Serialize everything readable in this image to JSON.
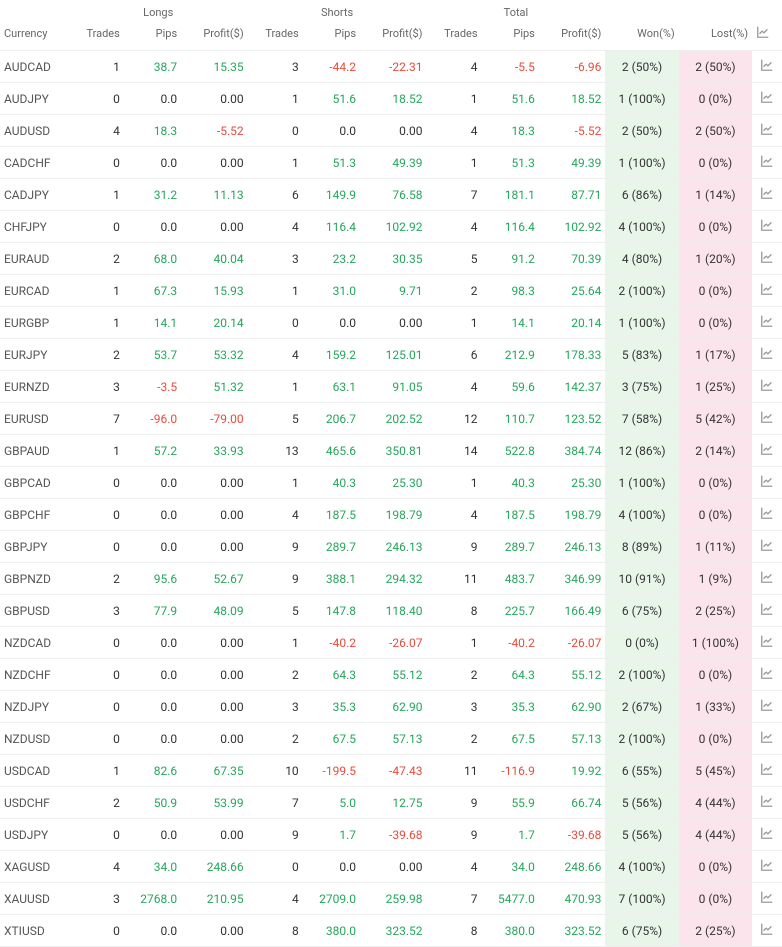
{
  "groups": {
    "longs": "Longs",
    "shorts": "Shorts",
    "total": "Total"
  },
  "headers": {
    "currency": "Currency",
    "trades": "Trades",
    "pips": "Pips",
    "profit": "Profit($)",
    "won": "Won(%)",
    "lost": "Lost(%)"
  },
  "colors": {
    "pos": "#26a65b",
    "neg": "#e74c3c",
    "won_bg": "#e8f5e9",
    "lost_bg": "#fce4ec"
  },
  "rows": [
    {
      "currency": "AUDCAD",
      "l_trades": 1,
      "l_pips": "38.7",
      "l_pips_c": "pos",
      "l_profit": "15.35",
      "l_profit_c": "pos",
      "s_trades": 3,
      "s_pips": "-44.2",
      "s_pips_c": "neg",
      "s_profit": "-22.31",
      "s_profit_c": "neg",
      "t_trades": 4,
      "t_pips": "-5.5",
      "t_pips_c": "neg",
      "t_profit": "-6.96",
      "t_profit_c": "neg",
      "won": "2 (50%)",
      "lost": "2 (50%)"
    },
    {
      "currency": "AUDJPY",
      "l_trades": 0,
      "l_pips": "0.0",
      "l_pips_c": "neutral",
      "l_profit": "0.00",
      "l_profit_c": "neutral",
      "s_trades": 1,
      "s_pips": "51.6",
      "s_pips_c": "pos",
      "s_profit": "18.52",
      "s_profit_c": "pos",
      "t_trades": 1,
      "t_pips": "51.6",
      "t_pips_c": "pos",
      "t_profit": "18.52",
      "t_profit_c": "pos",
      "won": "1 (100%)",
      "lost": "0 (0%)"
    },
    {
      "currency": "AUDUSD",
      "l_trades": 4,
      "l_pips": "18.3",
      "l_pips_c": "pos",
      "l_profit": "-5.52",
      "l_profit_c": "neg",
      "s_trades": 0,
      "s_pips": "0.0",
      "s_pips_c": "neutral",
      "s_profit": "0.00",
      "s_profit_c": "neutral",
      "t_trades": 4,
      "t_pips": "18.3",
      "t_pips_c": "pos",
      "t_profit": "-5.52",
      "t_profit_c": "neg",
      "won": "2 (50%)",
      "lost": "2 (50%)"
    },
    {
      "currency": "CADCHF",
      "l_trades": 0,
      "l_pips": "0.0",
      "l_pips_c": "neutral",
      "l_profit": "0.00",
      "l_profit_c": "neutral",
      "s_trades": 1,
      "s_pips": "51.3",
      "s_pips_c": "pos",
      "s_profit": "49.39",
      "s_profit_c": "pos",
      "t_trades": 1,
      "t_pips": "51.3",
      "t_pips_c": "pos",
      "t_profit": "49.39",
      "t_profit_c": "pos",
      "won": "1 (100%)",
      "lost": "0 (0%)"
    },
    {
      "currency": "CADJPY",
      "l_trades": 1,
      "l_pips": "31.2",
      "l_pips_c": "pos",
      "l_profit": "11.13",
      "l_profit_c": "pos",
      "s_trades": 6,
      "s_pips": "149.9",
      "s_pips_c": "pos",
      "s_profit": "76.58",
      "s_profit_c": "pos",
      "t_trades": 7,
      "t_pips": "181.1",
      "t_pips_c": "pos",
      "t_profit": "87.71",
      "t_profit_c": "pos",
      "won": "6 (86%)",
      "lost": "1 (14%)"
    },
    {
      "currency": "CHFJPY",
      "l_trades": 0,
      "l_pips": "0.0",
      "l_pips_c": "neutral",
      "l_profit": "0.00",
      "l_profit_c": "neutral",
      "s_trades": 4,
      "s_pips": "116.4",
      "s_pips_c": "pos",
      "s_profit": "102.92",
      "s_profit_c": "pos",
      "t_trades": 4,
      "t_pips": "116.4",
      "t_pips_c": "pos",
      "t_profit": "102.92",
      "t_profit_c": "pos",
      "won": "4 (100%)",
      "lost": "0 (0%)"
    },
    {
      "currency": "EURAUD",
      "l_trades": 2,
      "l_pips": "68.0",
      "l_pips_c": "pos",
      "l_profit": "40.04",
      "l_profit_c": "pos",
      "s_trades": 3,
      "s_pips": "23.2",
      "s_pips_c": "pos",
      "s_profit": "30.35",
      "s_profit_c": "pos",
      "t_trades": 5,
      "t_pips": "91.2",
      "t_pips_c": "pos",
      "t_profit": "70.39",
      "t_profit_c": "pos",
      "won": "4 (80%)",
      "lost": "1 (20%)"
    },
    {
      "currency": "EURCAD",
      "l_trades": 1,
      "l_pips": "67.3",
      "l_pips_c": "pos",
      "l_profit": "15.93",
      "l_profit_c": "pos",
      "s_trades": 1,
      "s_pips": "31.0",
      "s_pips_c": "pos",
      "s_profit": "9.71",
      "s_profit_c": "pos",
      "t_trades": 2,
      "t_pips": "98.3",
      "t_pips_c": "pos",
      "t_profit": "25.64",
      "t_profit_c": "pos",
      "won": "2 (100%)",
      "lost": "0 (0%)"
    },
    {
      "currency": "EURGBP",
      "l_trades": 1,
      "l_pips": "14.1",
      "l_pips_c": "pos",
      "l_profit": "20.14",
      "l_profit_c": "pos",
      "s_trades": 0,
      "s_pips": "0.0",
      "s_pips_c": "neutral",
      "s_profit": "0.00",
      "s_profit_c": "neutral",
      "t_trades": 1,
      "t_pips": "14.1",
      "t_pips_c": "pos",
      "t_profit": "20.14",
      "t_profit_c": "pos",
      "won": "1 (100%)",
      "lost": "0 (0%)"
    },
    {
      "currency": "EURJPY",
      "l_trades": 2,
      "l_pips": "53.7",
      "l_pips_c": "pos",
      "l_profit": "53.32",
      "l_profit_c": "pos",
      "s_trades": 4,
      "s_pips": "159.2",
      "s_pips_c": "pos",
      "s_profit": "125.01",
      "s_profit_c": "pos",
      "t_trades": 6,
      "t_pips": "212.9",
      "t_pips_c": "pos",
      "t_profit": "178.33",
      "t_profit_c": "pos",
      "won": "5 (83%)",
      "lost": "1 (17%)"
    },
    {
      "currency": "EURNZD",
      "l_trades": 3,
      "l_pips": "-3.5",
      "l_pips_c": "neg",
      "l_profit": "51.32",
      "l_profit_c": "pos",
      "s_trades": 1,
      "s_pips": "63.1",
      "s_pips_c": "pos",
      "s_profit": "91.05",
      "s_profit_c": "pos",
      "t_trades": 4,
      "t_pips": "59.6",
      "t_pips_c": "pos",
      "t_profit": "142.37",
      "t_profit_c": "pos",
      "won": "3 (75%)",
      "lost": "1 (25%)"
    },
    {
      "currency": "EURUSD",
      "l_trades": 7,
      "l_pips": "-96.0",
      "l_pips_c": "neg",
      "l_profit": "-79.00",
      "l_profit_c": "neg",
      "s_trades": 5,
      "s_pips": "206.7",
      "s_pips_c": "pos",
      "s_profit": "202.52",
      "s_profit_c": "pos",
      "t_trades": 12,
      "t_pips": "110.7",
      "t_pips_c": "pos",
      "t_profit": "123.52",
      "t_profit_c": "pos",
      "won": "7 (58%)",
      "lost": "5 (42%)"
    },
    {
      "currency": "GBPAUD",
      "l_trades": 1,
      "l_pips": "57.2",
      "l_pips_c": "pos",
      "l_profit": "33.93",
      "l_profit_c": "pos",
      "s_trades": 13,
      "s_pips": "465.6",
      "s_pips_c": "pos",
      "s_profit": "350.81",
      "s_profit_c": "pos",
      "t_trades": 14,
      "t_pips": "522.8",
      "t_pips_c": "pos",
      "t_profit": "384.74",
      "t_profit_c": "pos",
      "won": "12 (86%)",
      "lost": "2 (14%)"
    },
    {
      "currency": "GBPCAD",
      "l_trades": 0,
      "l_pips": "0.0",
      "l_pips_c": "neutral",
      "l_profit": "0.00",
      "l_profit_c": "neutral",
      "s_trades": 1,
      "s_pips": "40.3",
      "s_pips_c": "pos",
      "s_profit": "25.30",
      "s_profit_c": "pos",
      "t_trades": 1,
      "t_pips": "40.3",
      "t_pips_c": "pos",
      "t_profit": "25.30",
      "t_profit_c": "pos",
      "won": "1 (100%)",
      "lost": "0 (0%)"
    },
    {
      "currency": "GBPCHF",
      "l_trades": 0,
      "l_pips": "0.0",
      "l_pips_c": "neutral",
      "l_profit": "0.00",
      "l_profit_c": "neutral",
      "s_trades": 4,
      "s_pips": "187.5",
      "s_pips_c": "pos",
      "s_profit": "198.79",
      "s_profit_c": "pos",
      "t_trades": 4,
      "t_pips": "187.5",
      "t_pips_c": "pos",
      "t_profit": "198.79",
      "t_profit_c": "pos",
      "won": "4 (100%)",
      "lost": "0 (0%)"
    },
    {
      "currency": "GBPJPY",
      "l_trades": 0,
      "l_pips": "0.0",
      "l_pips_c": "neutral",
      "l_profit": "0.00",
      "l_profit_c": "neutral",
      "s_trades": 9,
      "s_pips": "289.7",
      "s_pips_c": "pos",
      "s_profit": "246.13",
      "s_profit_c": "pos",
      "t_trades": 9,
      "t_pips": "289.7",
      "t_pips_c": "pos",
      "t_profit": "246.13",
      "t_profit_c": "pos",
      "won": "8 (89%)",
      "lost": "1 (11%)"
    },
    {
      "currency": "GBPNZD",
      "l_trades": 2,
      "l_pips": "95.6",
      "l_pips_c": "pos",
      "l_profit": "52.67",
      "l_profit_c": "pos",
      "s_trades": 9,
      "s_pips": "388.1",
      "s_pips_c": "pos",
      "s_profit": "294.32",
      "s_profit_c": "pos",
      "t_trades": 11,
      "t_pips": "483.7",
      "t_pips_c": "pos",
      "t_profit": "346.99",
      "t_profit_c": "pos",
      "won": "10 (91%)",
      "lost": "1 (9%)"
    },
    {
      "currency": "GBPUSD",
      "l_trades": 3,
      "l_pips": "77.9",
      "l_pips_c": "pos",
      "l_profit": "48.09",
      "l_profit_c": "pos",
      "s_trades": 5,
      "s_pips": "147.8",
      "s_pips_c": "pos",
      "s_profit": "118.40",
      "s_profit_c": "pos",
      "t_trades": 8,
      "t_pips": "225.7",
      "t_pips_c": "pos",
      "t_profit": "166.49",
      "t_profit_c": "pos",
      "won": "6 (75%)",
      "lost": "2 (25%)"
    },
    {
      "currency": "NZDCAD",
      "l_trades": 0,
      "l_pips": "0.0",
      "l_pips_c": "neutral",
      "l_profit": "0.00",
      "l_profit_c": "neutral",
      "s_trades": 1,
      "s_pips": "-40.2",
      "s_pips_c": "neg",
      "s_profit": "-26.07",
      "s_profit_c": "neg",
      "t_trades": 1,
      "t_pips": "-40.2",
      "t_pips_c": "neg",
      "t_profit": "-26.07",
      "t_profit_c": "neg",
      "won": "0 (0%)",
      "lost": "1 (100%)"
    },
    {
      "currency": "NZDCHF",
      "l_trades": 0,
      "l_pips": "0.0",
      "l_pips_c": "neutral",
      "l_profit": "0.00",
      "l_profit_c": "neutral",
      "s_trades": 2,
      "s_pips": "64.3",
      "s_pips_c": "pos",
      "s_profit": "55.12",
      "s_profit_c": "pos",
      "t_trades": 2,
      "t_pips": "64.3",
      "t_pips_c": "pos",
      "t_profit": "55.12",
      "t_profit_c": "pos",
      "won": "2 (100%)",
      "lost": "0 (0%)"
    },
    {
      "currency": "NZDJPY",
      "l_trades": 0,
      "l_pips": "0.0",
      "l_pips_c": "neutral",
      "l_profit": "0.00",
      "l_profit_c": "neutral",
      "s_trades": 3,
      "s_pips": "35.3",
      "s_pips_c": "pos",
      "s_profit": "62.90",
      "s_profit_c": "pos",
      "t_trades": 3,
      "t_pips": "35.3",
      "t_pips_c": "pos",
      "t_profit": "62.90",
      "t_profit_c": "pos",
      "won": "2 (67%)",
      "lost": "1 (33%)"
    },
    {
      "currency": "NZDUSD",
      "l_trades": 0,
      "l_pips": "0.0",
      "l_pips_c": "neutral",
      "l_profit": "0.00",
      "l_profit_c": "neutral",
      "s_trades": 2,
      "s_pips": "67.5",
      "s_pips_c": "pos",
      "s_profit": "57.13",
      "s_profit_c": "pos",
      "t_trades": 2,
      "t_pips": "67.5",
      "t_pips_c": "pos",
      "t_profit": "57.13",
      "t_profit_c": "pos",
      "won": "2 (100%)",
      "lost": "0 (0%)"
    },
    {
      "currency": "USDCAD",
      "l_trades": 1,
      "l_pips": "82.6",
      "l_pips_c": "pos",
      "l_profit": "67.35",
      "l_profit_c": "pos",
      "s_trades": 10,
      "s_pips": "-199.5",
      "s_pips_c": "neg",
      "s_profit": "-47.43",
      "s_profit_c": "neg",
      "t_trades": 11,
      "t_pips": "-116.9",
      "t_pips_c": "neg",
      "t_profit": "19.92",
      "t_profit_c": "pos",
      "won": "6 (55%)",
      "lost": "5 (45%)"
    },
    {
      "currency": "USDCHF",
      "l_trades": 2,
      "l_pips": "50.9",
      "l_pips_c": "pos",
      "l_profit": "53.99",
      "l_profit_c": "pos",
      "s_trades": 7,
      "s_pips": "5.0",
      "s_pips_c": "pos",
      "s_profit": "12.75",
      "s_profit_c": "pos",
      "t_trades": 9,
      "t_pips": "55.9",
      "t_pips_c": "pos",
      "t_profit": "66.74",
      "t_profit_c": "pos",
      "won": "5 (56%)",
      "lost": "4 (44%)"
    },
    {
      "currency": "USDJPY",
      "l_trades": 0,
      "l_pips": "0.0",
      "l_pips_c": "neutral",
      "l_profit": "0.00",
      "l_profit_c": "neutral",
      "s_trades": 9,
      "s_pips": "1.7",
      "s_pips_c": "pos",
      "s_profit": "-39.68",
      "s_profit_c": "neg",
      "t_trades": 9,
      "t_pips": "1.7",
      "t_pips_c": "pos",
      "t_profit": "-39.68",
      "t_profit_c": "neg",
      "won": "5 (56%)",
      "lost": "4 (44%)"
    },
    {
      "currency": "XAGUSD",
      "l_trades": 4,
      "l_pips": "34.0",
      "l_pips_c": "pos",
      "l_profit": "248.66",
      "l_profit_c": "pos",
      "s_trades": 0,
      "s_pips": "0.0",
      "s_pips_c": "neutral",
      "s_profit": "0.00",
      "s_profit_c": "neutral",
      "t_trades": 4,
      "t_pips": "34.0",
      "t_pips_c": "pos",
      "t_profit": "248.66",
      "t_profit_c": "pos",
      "won": "4 (100%)",
      "lost": "0 (0%)"
    },
    {
      "currency": "XAUUSD",
      "l_trades": 3,
      "l_pips": "2768.0",
      "l_pips_c": "pos",
      "l_profit": "210.95",
      "l_profit_c": "pos",
      "s_trades": 4,
      "s_pips": "2709.0",
      "s_pips_c": "pos",
      "s_profit": "259.98",
      "s_profit_c": "pos",
      "t_trades": 7,
      "t_pips": "5477.0",
      "t_pips_c": "pos",
      "t_profit": "470.93",
      "t_profit_c": "pos",
      "won": "7 (100%)",
      "lost": "0 (0%)"
    },
    {
      "currency": "XTIUSD",
      "l_trades": 0,
      "l_pips": "0.0",
      "l_pips_c": "neutral",
      "l_profit": "0.00",
      "l_profit_c": "neutral",
      "s_trades": 8,
      "s_pips": "380.0",
      "s_pips_c": "pos",
      "s_profit": "323.52",
      "s_profit_c": "pos",
      "t_trades": 8,
      "t_pips": "380.0",
      "t_pips_c": "pos",
      "t_profit": "323.52",
      "t_profit_c": "pos",
      "won": "6 (75%)",
      "lost": "2 (25%)"
    }
  ]
}
